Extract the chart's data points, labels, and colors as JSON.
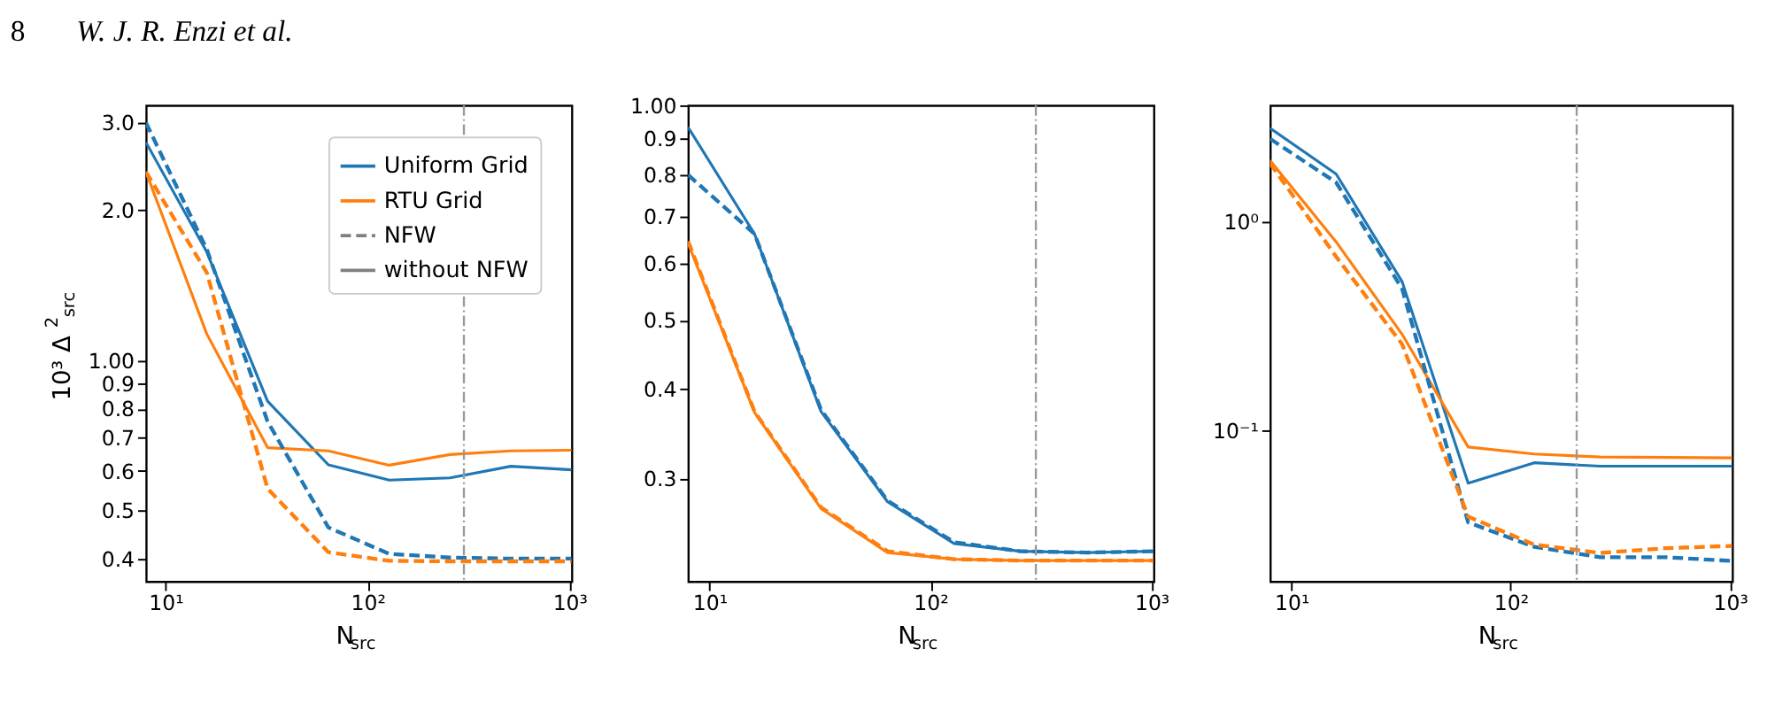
{
  "chart_data": [
    {
      "type": "line",
      "annotations": [
        "8",
        "W. J. R. Enzi et al."
      ],
      "xlabel": "N$_{src}$",
      "ylabel": "10³ Δ$^{2}$$_{src}$",
      "log": "xy",
      "legend": "top right",
      "grid": false,
      "x": [
        8,
        16,
        32,
        64,
        128,
        256,
        512,
        1024
      ],
      "xlim": [
        8,
        1024
      ],
      "xticks": [
        {
          "value": 10,
          "label": "10¹"
        },
        {
          "value": 100,
          "label": "10²"
        },
        {
          "value": 1000,
          "label": "10³"
        }
      ],
      "ylim": [
        0.36,
        3.25
      ],
      "yticks": [
        0.4,
        0.5,
        0.6,
        0.7,
        0.8,
        0.9,
        {
          "value": 1.0,
          "label": "1.00"
        },
        {
          "value": 2.0,
          "label": "2.0"
        },
        {
          "value": 3.0,
          "label": "3.0"
        }
      ],
      "series": [
        {
          "name": "Uniform Grid",
          "color": "#1f77b4",
          "line_style": "solid",
          "values": [
            2.74,
            1.65,
            0.828,
            0.617,
            0.575,
            0.581,
            0.613,
            0.603
          ]
        },
        {
          "name": "RTU Grid",
          "color": "#ff7f0e",
          "line_style": "solid",
          "values": [
            2.39,
            1.13,
            0.668,
            0.658,
            0.616,
            0.647,
            0.658,
            0.66
          ]
        },
        {
          "color": "#1f77b4",
          "line_style": "dashed",
          "values": [
            3.0,
            1.67,
            0.754,
            0.462,
            0.409,
            0.402,
            0.4,
            0.4
          ]
        },
        {
          "color": "#ff7f0e",
          "line_style": "dashed",
          "values": [
            2.39,
            1.5,
            0.553,
            0.412,
            0.396,
            0.395,
            0.395,
            0.395
          ]
        },
        {
          "name": "NFW",
          "color": "#808080",
          "line_style": "dashed",
          "values": [
            null,
            null,
            null,
            null,
            null,
            null,
            null,
            null
          ]
        },
        {
          "name": "without NFW",
          "color": "#808080",
          "line_style": "solid",
          "values": [
            null,
            null,
            null,
            null,
            null,
            null,
            null,
            null
          ]
        }
      ],
      "ref_lines": [
        {
          "axis": "x",
          "value": 300,
          "color": "#999999",
          "line_style": "dashdot"
        }
      ]
    },
    {
      "type": "line",
      "xlabel": "N$_{src}$",
      "log": "xy",
      "legend": false,
      "grid": false,
      "x": [
        8,
        16,
        32,
        64,
        128,
        256,
        512,
        1024
      ],
      "xlim": [
        8,
        1024
      ],
      "xticks": [
        {
          "value": 10,
          "label": "10¹"
        },
        {
          "value": 100,
          "label": "10²"
        },
        {
          "value": 1000,
          "label": "10³"
        }
      ],
      "ylim": [
        0.215,
        1.0
      ],
      "yticks": [
        0.3,
        0.4,
        0.5,
        0.6,
        0.7,
        0.8,
        0.9,
        {
          "value": 1.0,
          "label": "1.00"
        }
      ],
      "series": [
        {
          "color": "#1f77b4",
          "line_style": "solid",
          "values": [
            0.932,
            0.66,
            0.372,
            0.278,
            0.243,
            0.237,
            0.236,
            0.237
          ]
        },
        {
          "color": "#ff7f0e",
          "line_style": "solid",
          "values": [
            0.641,
            0.371,
            0.272,
            0.236,
            0.231,
            0.23,
            0.23,
            0.23
          ]
        },
        {
          "color": "#1f77b4",
          "line_style": "dashed",
          "values": [
            0.799,
            0.66,
            0.374,
            0.279,
            0.244,
            0.237,
            0.236,
            0.237
          ]
        },
        {
          "color": "#ff7f0e",
          "line_style": "dashed",
          "values": [
            0.645,
            0.372,
            0.273,
            0.237,
            0.231,
            0.23,
            0.23,
            0.23
          ]
        }
      ],
      "ref_lines": [
        {
          "axis": "x",
          "value": 300,
          "color": "#999999",
          "line_style": "dashdot"
        }
      ]
    },
    {
      "type": "line",
      "xlabel": "N$_{src}$",
      "log": "xy",
      "legend": false,
      "grid": false,
      "x": [
        8,
        16,
        32,
        64,
        128,
        256,
        512,
        1024
      ],
      "xlim": [
        8,
        1024
      ],
      "xticks": [
        {
          "value": 10,
          "label": "10¹"
        },
        {
          "value": 100,
          "label": "10²"
        },
        {
          "value": 1000,
          "label": "10³"
        }
      ],
      "ylim": [
        0.019,
        3.6
      ],
      "yticks": [
        {
          "value": 0.1,
          "label": "10⁻¹"
        },
        {
          "value": 1,
          "label": "10⁰"
        }
      ],
      "series": [
        {
          "color": "#1f77b4",
          "line_style": "solid",
          "values": [
            2.8,
            1.69,
            0.516,
            0.0561,
            0.0702,
            0.0676,
            0.0676,
            0.0676
          ]
        },
        {
          "color": "#ff7f0e",
          "line_style": "solid",
          "values": [
            1.96,
            0.8,
            0.289,
            0.0835,
            0.0773,
            0.0748,
            0.0745,
            0.0741
          ]
        },
        {
          "color": "#1f77b4",
          "line_style": "dashed",
          "values": [
            2.49,
            1.54,
            0.477,
            0.0364,
            0.0278,
            0.0248,
            0.0248,
            0.0238
          ]
        },
        {
          "color": "#ff7f0e",
          "line_style": "dashed",
          "values": [
            1.9,
            0.68,
            0.259,
            0.0388,
            0.0285,
            0.026,
            0.0274,
            0.0281
          ]
        }
      ],
      "ref_lines": [
        {
          "axis": "x",
          "value": 200,
          "color": "#999999",
          "line_style": "dashdot"
        }
      ]
    }
  ]
}
